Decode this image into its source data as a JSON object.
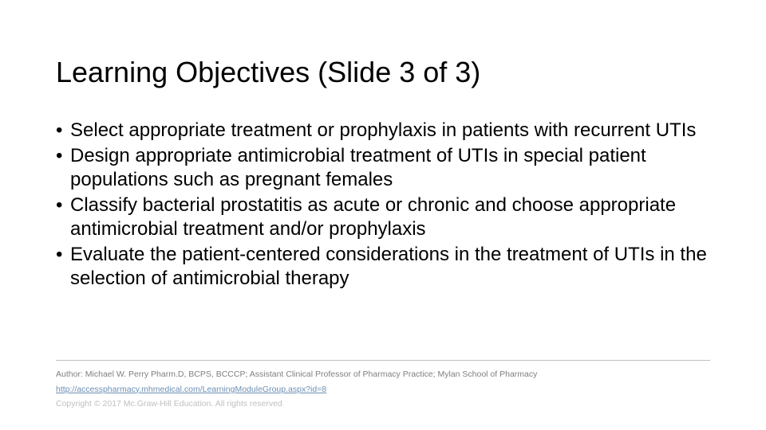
{
  "title": "Learning Objectives (Slide 3 of 3)",
  "bullets": [
    "Select appropriate treatment or prophylaxis in patients with recurrent UTIs",
    "Design appropriate antimicrobial treatment of UTIs in special patient populations such as pregnant females",
    "Classify bacterial prostatitis as acute or chronic and choose appropriate antimicrobial treatment and/or prophylaxis",
    "Evaluate the patient-centered considerations in the treatment of UTIs in the selection of antimicrobial therapy"
  ],
  "footer": {
    "author": "Author: Michael W. Perry Pharm.D, BCPS, BCCCP; Assistant Clinical Professor of Pharmacy Practice; Mylan School of Pharmacy",
    "link": "http://accesspharmacy.mhmedical.com/LearningModuleGroup.aspx?id=8",
    "copyright": "Copyright © 2017 Mc.Graw-Hill Education. All rights reserved"
  },
  "style": {
    "background_color": "#ffffff",
    "text_color": "#000000",
    "title_fontsize": 36,
    "body_fontsize": 24,
    "footer_fontsize": 10.5,
    "author_color": "#7f7f7f",
    "link_color": "#6b8fb4",
    "copyright_color": "#bfbfbf",
    "divider_color": "#bfbfbf",
    "bullet_char": "•"
  }
}
